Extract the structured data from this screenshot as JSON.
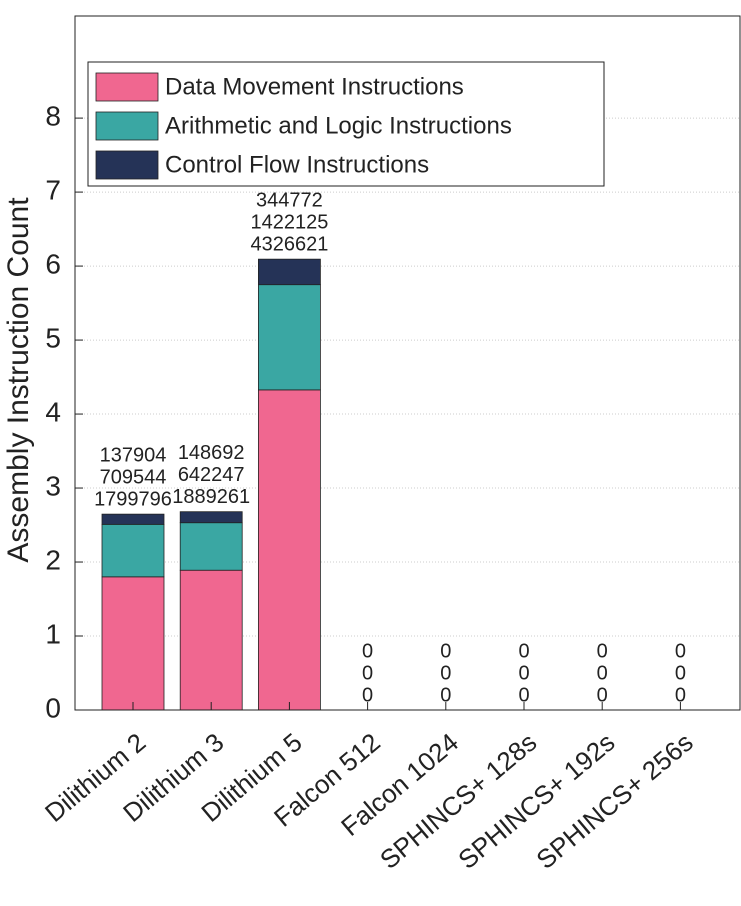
{
  "chart_data": {
    "type": "stacked_bar",
    "y_label": "Assembly Instruction Count",
    "y_multiplier": "×10⁶",
    "categories": [
      "Dilithium 2",
      "Dilithium 3",
      "Dilithium 5",
      "Falcon 512",
      "Falcon 1024",
      "SPHINCS+ 128s",
      "SPHINCS+ 192s",
      "SPHINCS+ 256s"
    ],
    "series": [
      {
        "name": "Data Movement Instructions",
        "color": "#f06790",
        "values": [
          1799796,
          1889261,
          4326621,
          0,
          0,
          0,
          0,
          0
        ]
      },
      {
        "name": "Arithmetic and Logic Instructions",
        "color": "#3aa7a3",
        "values": [
          709544,
          642247,
          1422125,
          0,
          0,
          0,
          0,
          0
        ]
      },
      {
        "name": "Control Flow Instructions",
        "color": "#253357",
        "values": [
          137904,
          148692,
          344772,
          0,
          0,
          0,
          0,
          0
        ]
      }
    ],
    "ylim": [
      0,
      9380000
    ],
    "yticks": [
      {
        "value": 0,
        "label": "0"
      },
      {
        "value": 1000000,
        "label": "1"
      },
      {
        "value": 2000000,
        "label": "2"
      },
      {
        "value": 3000000,
        "label": "3"
      },
      {
        "value": 4000000,
        "label": "4"
      },
      {
        "value": 5000000,
        "label": "5"
      },
      {
        "value": 6000000,
        "label": "6"
      },
      {
        "value": 7000000,
        "label": "7"
      },
      {
        "value": 8000000,
        "label": "8"
      }
    ],
    "grid": true,
    "legend": "top-left"
  }
}
